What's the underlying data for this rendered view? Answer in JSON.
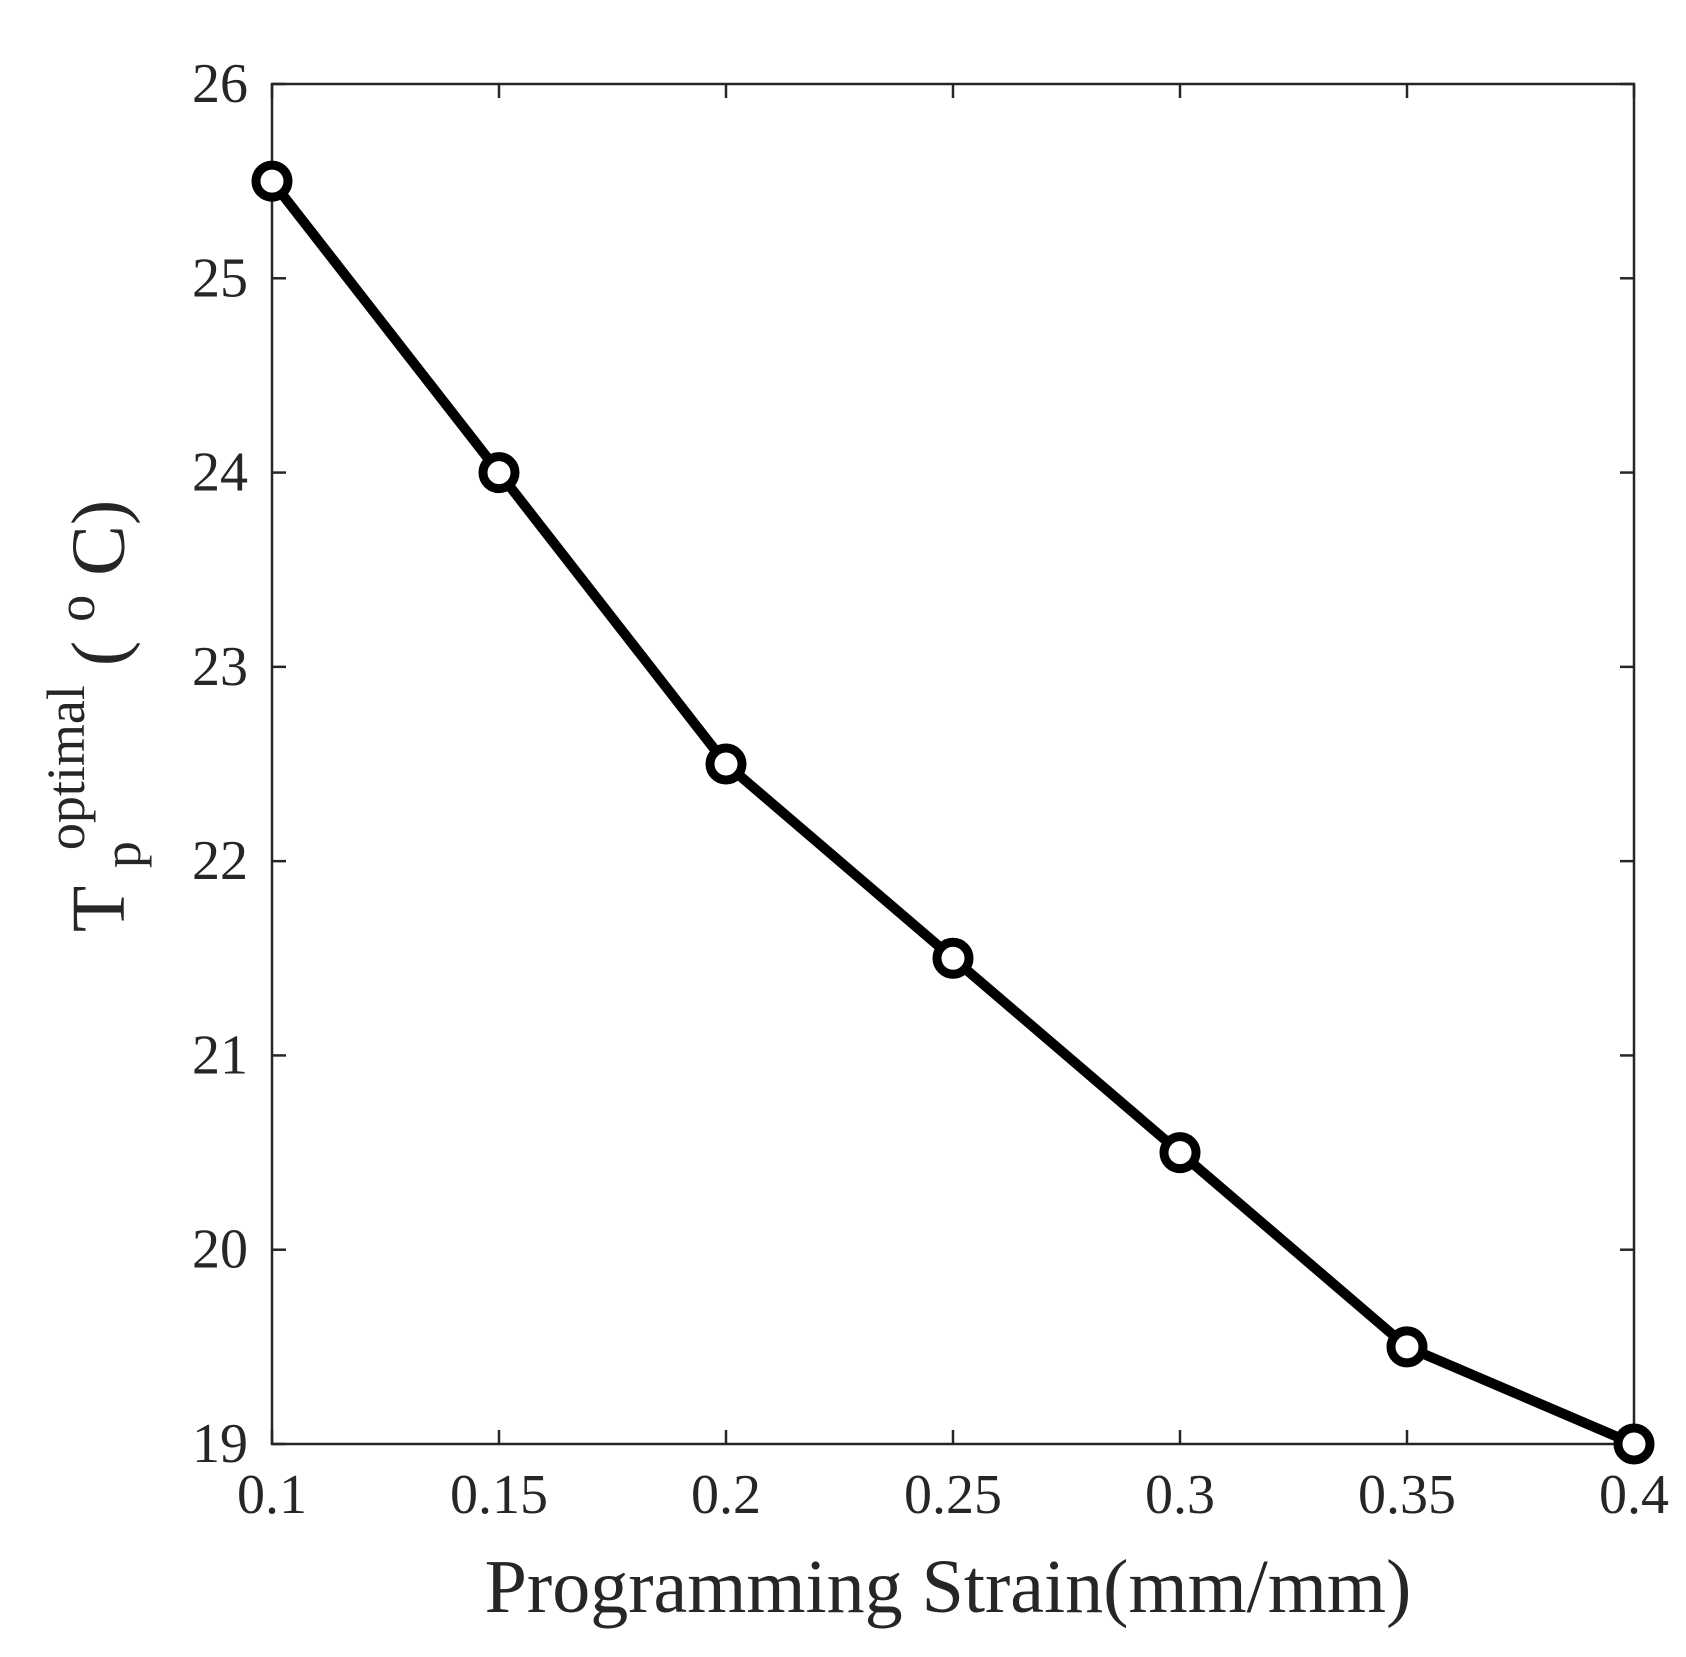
{
  "chart_data": {
    "type": "line",
    "title": "",
    "xlabel": "Programming Strain(mm/mm)",
    "ylabel": {
      "main": "T",
      "subscript": "p",
      "superscript": "optimal",
      "unit_open": "(",
      "unit_super": "o",
      "unit_rest": "C)"
    },
    "xlim": [
      0.1,
      0.4
    ],
    "ylim": [
      19,
      26
    ],
    "xticks": [
      0.1,
      0.15,
      0.2,
      0.25,
      0.3,
      0.35,
      0.4
    ],
    "xtick_labels": [
      "0.1",
      "0.15",
      "0.2",
      "0.25",
      "0.3",
      "0.35",
      "0.4"
    ],
    "yticks": [
      19,
      20,
      21,
      22,
      23,
      24,
      25,
      26
    ],
    "ytick_labels": [
      "19",
      "20",
      "21",
      "22",
      "23",
      "24",
      "25",
      "26"
    ],
    "grid": false,
    "series": [
      {
        "name": "T_p optimal",
        "marker": "circle",
        "color": "#000000",
        "x": [
          0.1,
          0.15,
          0.2,
          0.25,
          0.3,
          0.35,
          0.4
        ],
        "y": [
          25.5,
          24.0,
          22.5,
          21.5,
          20.5,
          19.5,
          19.0
        ]
      }
    ]
  }
}
